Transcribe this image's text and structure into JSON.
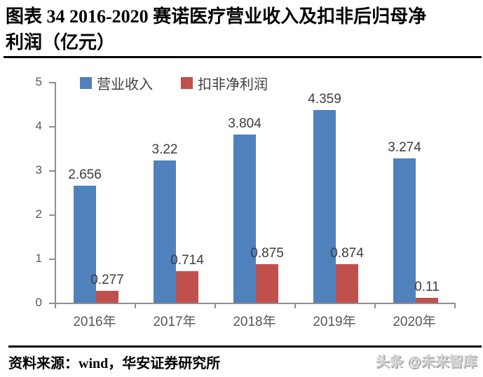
{
  "title": {
    "line1": "图表 34  2016-2020 赛诺医疗营业收入及扣非后归母净",
    "line2": "利润（亿元）"
  },
  "chart_data": {
    "type": "bar",
    "title": "2016-2020 赛诺医疗营业收入及扣非后归母净利润（亿元）",
    "categories": [
      "2016年",
      "2017年",
      "2018年",
      "2019年",
      "2020年"
    ],
    "series": [
      {
        "name": "营业收入",
        "color": "#4F81BD",
        "values": [
          2.656,
          3.22,
          3.804,
          4.359,
          3.274
        ],
        "labels": [
          "2.656",
          "3.22",
          "3.804",
          "4.359",
          "3.274"
        ]
      },
      {
        "name": "扣非净利润",
        "color": "#C0504D",
        "values": [
          0.277,
          0.714,
          0.875,
          0.874,
          0.11
        ],
        "labels": [
          "0.277",
          "0.714",
          "0.875",
          "0.874",
          "0.11"
        ]
      }
    ],
    "xlabel": "",
    "ylabel": "",
    "ylim": [
      0,
      5
    ],
    "yticks": [
      0,
      1,
      2,
      3,
      4,
      5
    ],
    "legend_position": "top",
    "grid": false,
    "data_labels_shown": true
  },
  "footer": {
    "source": "资料来源：wind，华安证券研究所",
    "watermark": "头条 @未来智库"
  },
  "colors": {
    "revenue": "#4F81BD",
    "profit": "#C0504D",
    "axis": "#8f8f8f",
    "tick_label": "#595959",
    "data_label": "#3d3d3d",
    "rule": "#000000"
  }
}
